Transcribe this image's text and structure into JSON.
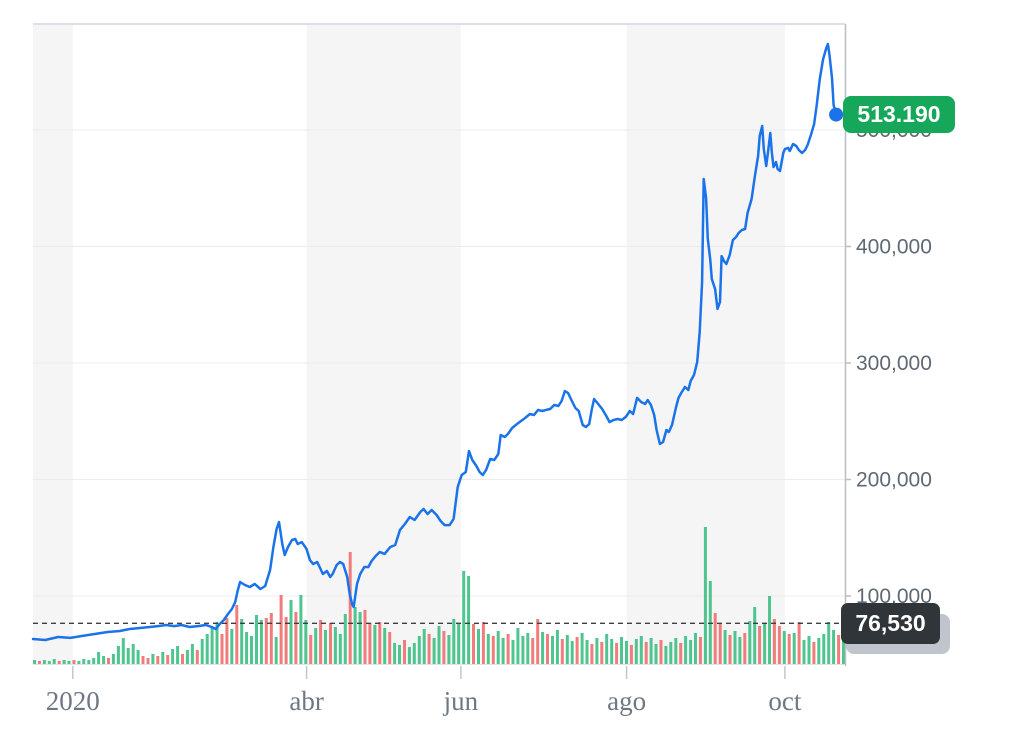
{
  "badges": {
    "last_price": {
      "text": "513.190",
      "bg": "#17a75a",
      "text_color": "#ffffff"
    },
    "reference_price": {
      "text": "76,530",
      "bg": "#303539",
      "text_color": "#ffffff"
    },
    "reference_price_secondary": {
      "bg": "#bfc5cb"
    }
  },
  "colors": {
    "line": "#1a73e8",
    "dot": "#1a73e8",
    "volume_up": "#4ec48e",
    "volume_down": "#f17c7c",
    "grid": "#ececee",
    "band": "#f5f5f6",
    "axis": "#b9bec4",
    "tick": "#c3c7cb",
    "baseline": "#e0e3e6",
    "plot_border": "#dce0e5",
    "dashed": "#3c4043",
    "x_label": "#6e7884",
    "y_label": "#5f6974"
  },
  "chart_data": {
    "type": "line",
    "description": "Daily price line with up/down volume bars, year 2020, right-hand value axis",
    "last_point": {
      "value": 513190,
      "label": "513.190"
    },
    "reference_line": {
      "value": 76530,
      "label": "76,530",
      "style": "dashed"
    },
    "x_axis": {
      "ticks": [
        {
          "label": "2020",
          "t": 0.049
        },
        {
          "label": "abr",
          "t": 0.337
        },
        {
          "label": "jun",
          "t": 0.527
        },
        {
          "label": "ago",
          "t": 0.731
        },
        {
          "label": "oct",
          "t": 0.926
        }
      ],
      "shaded_bands": [
        [
          0,
          0.049
        ],
        [
          0.337,
          0.527
        ],
        [
          0.731,
          0.926
        ]
      ]
    },
    "y_axis": {
      "side": "right",
      "labels": [
        {
          "text": "100,000",
          "value": 100000
        },
        {
          "text": "200,000",
          "value": 200000
        },
        {
          "text": "300,000",
          "value": 300000
        },
        {
          "text": "400,000",
          "value": 400000
        },
        {
          "text": "500,000",
          "value": 500000
        }
      ]
    },
    "price_series": [
      [
        0,
        63100
      ],
      [
        0.015,
        62200
      ],
      [
        0.031,
        64800
      ],
      [
        0.046,
        64000
      ],
      [
        0.06,
        65700
      ],
      [
        0.076,
        67400
      ],
      [
        0.092,
        69100
      ],
      [
        0.107,
        70000
      ],
      [
        0.119,
        71700
      ],
      [
        0.132,
        72500
      ],
      [
        0.144,
        73400
      ],
      [
        0.154,
        74200
      ],
      [
        0.164,
        75100
      ],
      [
        0.174,
        74200
      ],
      [
        0.183,
        75100
      ],
      [
        0.193,
        73400
      ],
      [
        0.203,
        74200
      ],
      [
        0.213,
        75100
      ],
      [
        0.22,
        73400
      ],
      [
        0.225,
        71700
      ],
      [
        0.23,
        76000
      ],
      [
        0.235,
        79400
      ],
      [
        0.24,
        84500
      ],
      [
        0.245,
        88800
      ],
      [
        0.249,
        94800
      ],
      [
        0.252,
        104300
      ],
      [
        0.255,
        112000
      ],
      [
        0.261,
        109400
      ],
      [
        0.267,
        107700
      ],
      [
        0.273,
        110300
      ],
      [
        0.28,
        106000
      ],
      [
        0.286,
        108600
      ],
      [
        0.292,
        122300
      ],
      [
        0.296,
        142100
      ],
      [
        0.3,
        157500
      ],
      [
        0.303,
        163500
      ],
      [
        0.307,
        144600
      ],
      [
        0.31,
        135200
      ],
      [
        0.314,
        142100
      ],
      [
        0.319,
        148100
      ],
      [
        0.323,
        148900
      ],
      [
        0.326,
        144600
      ],
      [
        0.331,
        146300
      ],
      [
        0.337,
        140300
      ],
      [
        0.341,
        130900
      ],
      [
        0.345,
        127500
      ],
      [
        0.35,
        129200
      ],
      [
        0.353,
        124900
      ],
      [
        0.357,
        118900
      ],
      [
        0.362,
        121500
      ],
      [
        0.366,
        116300
      ],
      [
        0.369,
        118900
      ],
      [
        0.374,
        126600
      ],
      [
        0.378,
        129200
      ],
      [
        0.382,
        127500
      ],
      [
        0.387,
        116300
      ],
      [
        0.39,
        101700
      ],
      [
        0.393,
        93100
      ],
      [
        0.395,
        90600
      ],
      [
        0.399,
        110300
      ],
      [
        0.403,
        118900
      ],
      [
        0.408,
        124900
      ],
      [
        0.413,
        124900
      ],
      [
        0.417,
        130000
      ],
      [
        0.422,
        134300
      ],
      [
        0.427,
        137800
      ],
      [
        0.433,
        136100
      ],
      [
        0.44,
        142100
      ],
      [
        0.446,
        143800
      ],
      [
        0.452,
        156700
      ],
      [
        0.458,
        161800
      ],
      [
        0.464,
        167800
      ],
      [
        0.47,
        165200
      ],
      [
        0.477,
        172100
      ],
      [
        0.481,
        174700
      ],
      [
        0.486,
        170400
      ],
      [
        0.491,
        173800
      ],
      [
        0.497,
        169500
      ],
      [
        0.502,
        164400
      ],
      [
        0.507,
        160900
      ],
      [
        0.513,
        160900
      ],
      [
        0.518,
        166100
      ],
      [
        0.523,
        193600
      ],
      [
        0.528,
        203900
      ],
      [
        0.533,
        206400
      ],
      [
        0.537,
        224500
      ],
      [
        0.541,
        216700
      ],
      [
        0.546,
        211600
      ],
      [
        0.55,
        206400
      ],
      [
        0.554,
        203900
      ],
      [
        0.558,
        208200
      ],
      [
        0.563,
        217600
      ],
      [
        0.568,
        216700
      ],
      [
        0.573,
        221900
      ],
      [
        0.576,
        238200
      ],
      [
        0.581,
        236500
      ],
      [
        0.585,
        239100
      ],
      [
        0.59,
        244200
      ],
      [
        0.596,
        247600
      ],
      [
        0.601,
        250200
      ],
      [
        0.606,
        252800
      ],
      [
        0.612,
        256200
      ],
      [
        0.617,
        255400
      ],
      [
        0.622,
        259700
      ],
      [
        0.627,
        258800
      ],
      [
        0.632,
        259700
      ],
      [
        0.637,
        260500
      ],
      [
        0.642,
        264000
      ],
      [
        0.647,
        263100
      ],
      [
        0.651,
        267400
      ],
      [
        0.655,
        276000
      ],
      [
        0.659,
        274200
      ],
      [
        0.663,
        268200
      ],
      [
        0.668,
        261400
      ],
      [
        0.672,
        258800
      ],
      [
        0.677,
        246800
      ],
      [
        0.681,
        245100
      ],
      [
        0.685,
        247600
      ],
      [
        0.688,
        259700
      ],
      [
        0.691,
        269100
      ],
      [
        0.696,
        264800
      ],
      [
        0.701,
        260500
      ],
      [
        0.706,
        254500
      ],
      [
        0.71,
        249300
      ],
      [
        0.715,
        251100
      ],
      [
        0.72,
        251900
      ],
      [
        0.725,
        251100
      ],
      [
        0.73,
        253700
      ],
      [
        0.735,
        258800
      ],
      [
        0.739,
        256200
      ],
      [
        0.744,
        270000
      ],
      [
        0.749,
        266500
      ],
      [
        0.754,
        264800
      ],
      [
        0.757,
        268200
      ],
      [
        0.761,
        264000
      ],
      [
        0.765,
        255400
      ],
      [
        0.768,
        242500
      ],
      [
        0.772,
        230500
      ],
      [
        0.776,
        232200
      ],
      [
        0.78,
        242500
      ],
      [
        0.783,
        240800
      ],
      [
        0.787,
        246800
      ],
      [
        0.792,
        262200
      ],
      [
        0.795,
        270000
      ],
      [
        0.799,
        275100
      ],
      [
        0.803,
        279400
      ],
      [
        0.807,
        276800
      ],
      [
        0.81,
        284600
      ],
      [
        0.814,
        289700
      ],
      [
        0.818,
        300900
      ],
      [
        0.821,
        326600
      ],
      [
        0.824,
        369500
      ],
      [
        0.826,
        457900
      ],
      [
        0.829,
        441600
      ],
      [
        0.831,
        406400
      ],
      [
        0.834,
        389300
      ],
      [
        0.836,
        372100
      ],
      [
        0.84,
        363500
      ],
      [
        0.843,
        346400
      ],
      [
        0.846,
        352400
      ],
      [
        0.848,
        391800
      ],
      [
        0.851,
        387500
      ],
      [
        0.854,
        385000
      ],
      [
        0.858,
        392700
      ],
      [
        0.862,
        405600
      ],
      [
        0.866,
        408200
      ],
      [
        0.869,
        411600
      ],
      [
        0.873,
        414200
      ],
      [
        0.877,
        415000
      ],
      [
        0.88,
        428800
      ],
      [
        0.885,
        440800
      ],
      [
        0.889,
        460500
      ],
      [
        0.893,
        477700
      ],
      [
        0.895,
        494800
      ],
      [
        0.898,
        503400
      ],
      [
        0.9,
        483700
      ],
      [
        0.903,
        469100
      ],
      [
        0.905,
        480300
      ],
      [
        0.908,
        497400
      ],
      [
        0.91,
        480300
      ],
      [
        0.912,
        468200
      ],
      [
        0.915,
        472500
      ],
      [
        0.917,
        466500
      ],
      [
        0.92,
        464800
      ],
      [
        0.924,
        480300
      ],
      [
        0.926,
        483700
      ],
      [
        0.93,
        484600
      ],
      [
        0.932,
        482000
      ],
      [
        0.936,
        488000
      ],
      [
        0.94,
        486300
      ],
      [
        0.943,
        482900
      ],
      [
        0.947,
        480300
      ],
      [
        0.951,
        482900
      ],
      [
        0.954,
        487100
      ],
      [
        0.958,
        495700
      ],
      [
        0.962,
        505100
      ],
      [
        0.965,
        520600
      ],
      [
        0.969,
        543800
      ],
      [
        0.973,
        560900
      ],
      [
        0.977,
        570400
      ],
      [
        0.979,
        573800
      ],
      [
        0.981,
        563500
      ],
      [
        0.984,
        544600
      ],
      [
        0.986,
        521500
      ],
      [
        0.989,
        513190
      ]
    ],
    "volume_bars": [
      [
        4,
        "g"
      ],
      [
        3,
        "r"
      ],
      [
        4,
        "g"
      ],
      [
        3,
        "g"
      ],
      [
        5,
        "g"
      ],
      [
        3,
        "r"
      ],
      [
        4,
        "g"
      ],
      [
        3,
        "g"
      ],
      [
        4,
        "r"
      ],
      [
        3,
        "g"
      ],
      [
        5,
        "g"
      ],
      [
        4,
        "g"
      ],
      [
        6,
        "g"
      ],
      [
        12,
        "g"
      ],
      [
        8,
        "g"
      ],
      [
        6,
        "r"
      ],
      [
        10,
        "g"
      ],
      [
        18,
        "g"
      ],
      [
        26,
        "g"
      ],
      [
        16,
        "g"
      ],
      [
        20,
        "g"
      ],
      [
        14,
        "g"
      ],
      [
        8,
        "r"
      ],
      [
        6,
        "r"
      ],
      [
        10,
        "g"
      ],
      [
        8,
        "r"
      ],
      [
        12,
        "g"
      ],
      [
        9,
        "r"
      ],
      [
        15,
        "g"
      ],
      [
        18,
        "g"
      ],
      [
        10,
        "r"
      ],
      [
        14,
        "g"
      ],
      [
        20,
        "g"
      ],
      [
        14,
        "r"
      ],
      [
        25,
        "g"
      ],
      [
        30,
        "g"
      ],
      [
        36,
        "g"
      ],
      [
        42,
        "g"
      ],
      [
        30,
        "r"
      ],
      [
        46,
        "r"
      ],
      [
        35,
        "g"
      ],
      [
        59,
        "r"
      ],
      [
        45,
        "g"
      ],
      [
        32,
        "g"
      ],
      [
        28,
        "g"
      ],
      [
        49,
        "g"
      ],
      [
        44,
        "g"
      ],
      [
        46,
        "r"
      ],
      [
        51,
        "r"
      ],
      [
        27,
        "g"
      ],
      [
        69,
        "r"
      ],
      [
        47,
        "r"
      ],
      [
        64,
        "g"
      ],
      [
        52,
        "r"
      ],
      [
        69,
        "g"
      ],
      [
        44,
        "g"
      ],
      [
        29,
        "r"
      ],
      [
        36,
        "g"
      ],
      [
        44,
        "r"
      ],
      [
        34,
        "g"
      ],
      [
        41,
        "r"
      ],
      [
        37,
        "g"
      ],
      [
        30,
        "g"
      ],
      [
        50,
        "g"
      ],
      [
        112,
        "r"
      ],
      [
        57,
        "g"
      ],
      [
        52,
        "g"
      ],
      [
        54,
        "r"
      ],
      [
        41,
        "r"
      ],
      [
        39,
        "g"
      ],
      [
        42,
        "r"
      ],
      [
        36,
        "g"
      ],
      [
        32,
        "r"
      ],
      [
        21,
        "g"
      ],
      [
        19,
        "g"
      ],
      [
        24,
        "r"
      ],
      [
        17,
        "g"
      ],
      [
        21,
        "g"
      ],
      [
        28,
        "g"
      ],
      [
        35,
        "g"
      ],
      [
        30,
        "r"
      ],
      [
        26,
        "g"
      ],
      [
        38,
        "g"
      ],
      [
        33,
        "r"
      ],
      [
        29,
        "g"
      ],
      [
        45,
        "g"
      ],
      [
        40,
        "g"
      ],
      [
        93,
        "g"
      ],
      [
        88,
        "g"
      ],
      [
        40,
        "r"
      ],
      [
        35,
        "g"
      ],
      [
        42,
        "r"
      ],
      [
        30,
        "g"
      ],
      [
        28,
        "r"
      ],
      [
        33,
        "g"
      ],
      [
        26,
        "g"
      ],
      [
        30,
        "r"
      ],
      [
        24,
        "g"
      ],
      [
        36,
        "g"
      ],
      [
        28,
        "g"
      ],
      [
        31,
        "g"
      ],
      [
        26,
        "r"
      ],
      [
        45,
        "r"
      ],
      [
        32,
        "g"
      ],
      [
        30,
        "r"
      ],
      [
        28,
        "g"
      ],
      [
        34,
        "g"
      ],
      [
        25,
        "r"
      ],
      [
        29,
        "g"
      ],
      [
        23,
        "g"
      ],
      [
        27,
        "r"
      ],
      [
        31,
        "g"
      ],
      [
        24,
        "g"
      ],
      [
        20,
        "r"
      ],
      [
        26,
        "g"
      ],
      [
        22,
        "r"
      ],
      [
        30,
        "g"
      ],
      [
        25,
        "g"
      ],
      [
        21,
        "r"
      ],
      [
        27,
        "g"
      ],
      [
        23,
        "g"
      ],
      [
        19,
        "r"
      ],
      [
        25,
        "g"
      ],
      [
        28,
        "g"
      ],
      [
        22,
        "r"
      ],
      [
        26,
        "g"
      ],
      [
        20,
        "g"
      ],
      [
        24,
        "r"
      ],
      [
        18,
        "g"
      ],
      [
        22,
        "g"
      ],
      [
        26,
        "g"
      ],
      [
        21,
        "r"
      ],
      [
        28,
        "g"
      ],
      [
        24,
        "g"
      ],
      [
        31,
        "g"
      ],
      [
        27,
        "r"
      ],
      [
        137,
        "g"
      ],
      [
        83,
        "g"
      ],
      [
        51,
        "r"
      ],
      [
        40,
        "r"
      ],
      [
        34,
        "g"
      ],
      [
        29,
        "r"
      ],
      [
        33,
        "g"
      ],
      [
        27,
        "g"
      ],
      [
        31,
        "r"
      ],
      [
        43,
        "g"
      ],
      [
        57,
        "g"
      ],
      [
        38,
        "r"
      ],
      [
        40,
        "g"
      ],
      [
        68,
        "g"
      ],
      [
        45,
        "r"
      ],
      [
        38,
        "r"
      ],
      [
        33,
        "g"
      ],
      [
        30,
        "r"
      ],
      [
        31,
        "g"
      ],
      [
        42,
        "r"
      ],
      [
        24,
        "g"
      ],
      [
        28,
        "g"
      ],
      [
        22,
        "r"
      ],
      [
        26,
        "g"
      ],
      [
        30,
        "g"
      ],
      [
        42,
        "g"
      ],
      [
        34,
        "g"
      ],
      [
        29,
        "r"
      ],
      [
        35,
        "g"
      ]
    ]
  }
}
